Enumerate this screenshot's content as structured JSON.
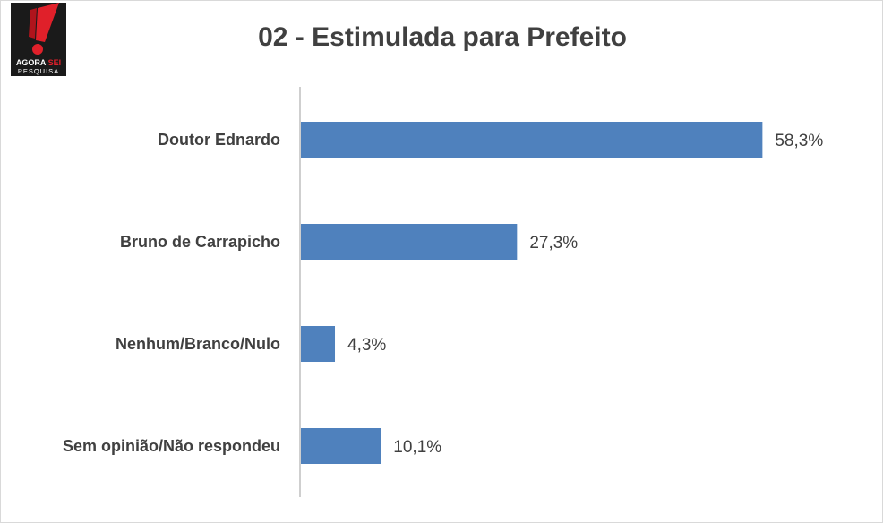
{
  "logo": {
    "brand_word1": "AGORA",
    "brand_word2": "SEI",
    "brand_sub": "PESQUISA"
  },
  "chart_data": {
    "type": "bar",
    "orientation": "horizontal",
    "title": "02 - Estimulada para Prefeito",
    "categories": [
      "Doutor Ednardo",
      "Bruno de Carrapicho",
      "Nenhum/Branco/Nulo",
      "Sem opinião/Não respondeu"
    ],
    "values": [
      58.3,
      27.3,
      4.3,
      10.1
    ],
    "value_labels": [
      "58,3%",
      "27,3%",
      "4,3%",
      "10,1%"
    ],
    "xlim": [
      0,
      100
    ],
    "grid": false,
    "legend": "none",
    "bar_color": "#4f81bd",
    "axis_color": "#bfbfbf",
    "text_color": "#404040"
  }
}
